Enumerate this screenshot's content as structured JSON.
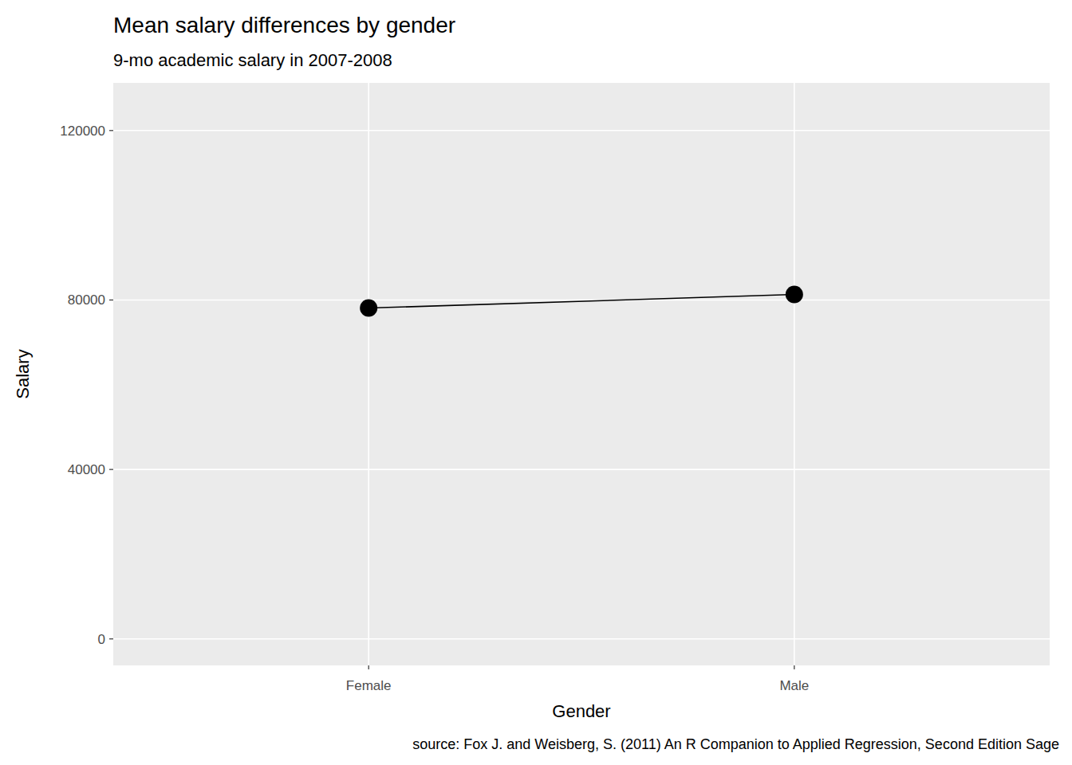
{
  "chart_data": {
    "type": "line",
    "title": "Mean salary differences by gender",
    "subtitle": "9-mo academic salary in 2007-2008",
    "x_label": "Gender",
    "y_label": "Salary",
    "caption": "source: Fox J. and Weisberg, S. (2011) An R Companion to Applied Regression, Second Edition Sage",
    "categories": [
      "Female",
      "Male"
    ],
    "values": [
      78100,
      81300
    ],
    "color": "#000000",
    "marker": "circle",
    "ylim": [
      -6250,
      131250
    ],
    "yticks": [
      0,
      40000,
      80000,
      120000
    ],
    "grid": true
  }
}
